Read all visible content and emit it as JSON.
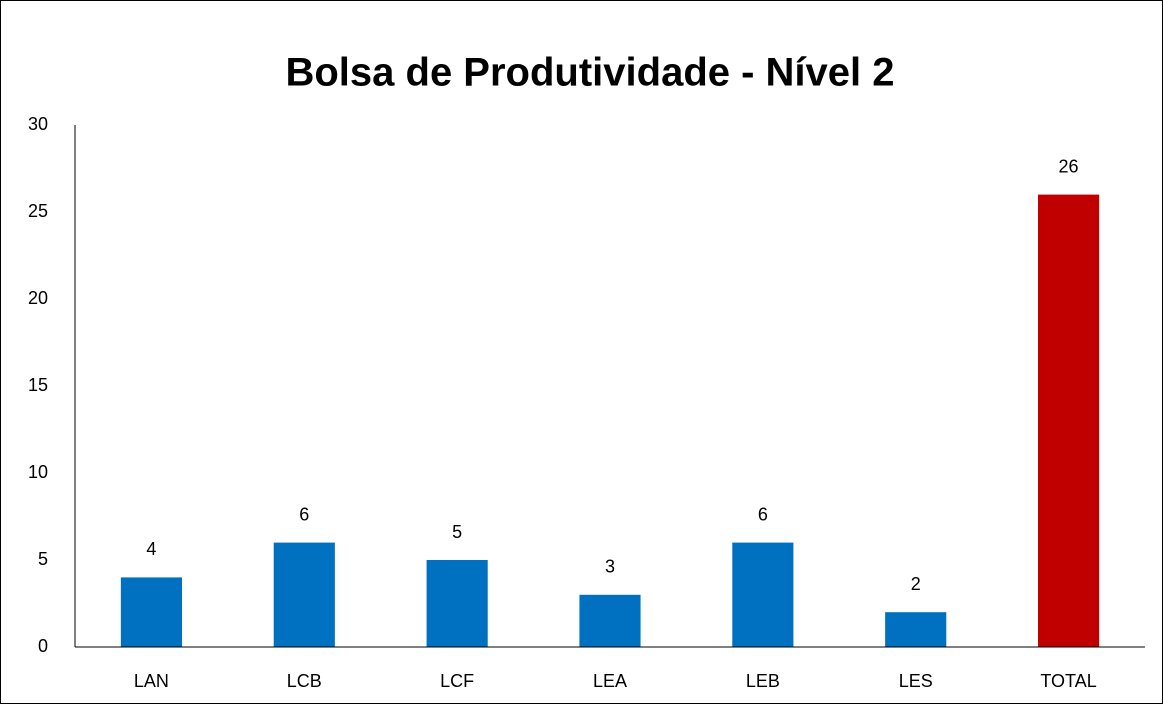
{
  "chart_data": {
    "type": "bar",
    "title": "Bolsa de Produtividade - Nível 2",
    "categories": [
      "LAN",
      "LCB",
      "LCF",
      "LEA",
      "LEB",
      "LES",
      "TOTAL"
    ],
    "values": [
      4,
      6,
      5,
      3,
      6,
      2,
      26
    ],
    "colors": [
      "#0070c0",
      "#0070c0",
      "#0070c0",
      "#0070c0",
      "#0070c0",
      "#0070c0",
      "#c00000"
    ],
    "ylim": [
      0,
      30
    ],
    "yticks": [
      0,
      5,
      10,
      15,
      20,
      25,
      30
    ],
    "grid": false
  }
}
